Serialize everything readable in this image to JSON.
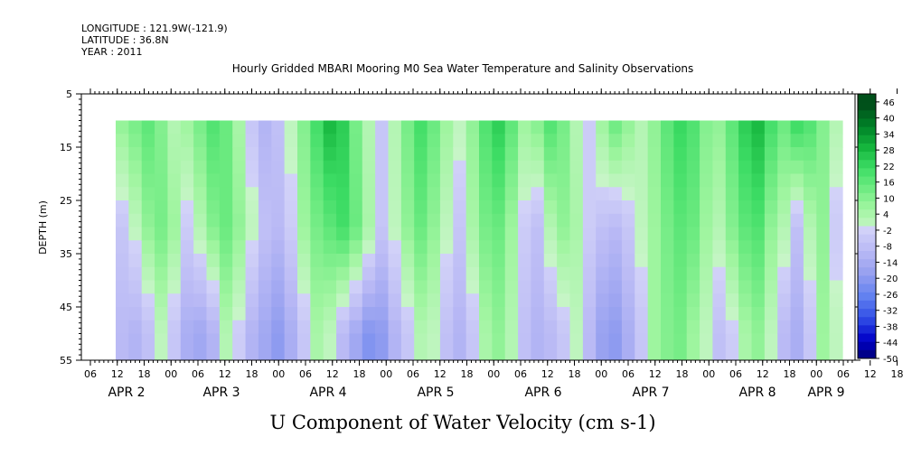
{
  "header": {
    "longitude": "LONGITUDE : 121.9W(-121.9)",
    "latitude": "LATITUDE : 36.8N",
    "year": "YEAR : 2011"
  },
  "chart_data": {
    "type": "heatmap",
    "title": "Hourly Gridded MBARI Mooring M0 Sea Water Temperature and Salinity Observations",
    "xlabel": "U Component of Water Velocity (cm s-1)",
    "ylabel": "DEPTH (m)",
    "ylim": [
      55,
      5
    ],
    "y_ticks": [
      5,
      15,
      25,
      35,
      45,
      55
    ],
    "x_hour_ticks": [
      "06",
      "12",
      "18",
      "00",
      "06",
      "12",
      "18",
      "00",
      "06",
      "12",
      "18",
      "00",
      "06",
      "12",
      "18",
      "00",
      "06",
      "12",
      "18",
      "00",
      "06",
      "12",
      "18",
      "00",
      "06",
      "12",
      "18",
      "00",
      "06",
      "12",
      "18",
      "00"
    ],
    "x_day_labels": [
      "APR  2",
      "APR  3",
      "APR  4",
      "APR  5",
      "APR  6",
      "APR  7",
      "APR  8",
      "APR 9"
    ],
    "data_depth_range_m": [
      10,
      55
    ],
    "colorbar": {
      "ticks": [
        46,
        40,
        34,
        28,
        22,
        16,
        10,
        4,
        -2,
        -8,
        -14,
        -20,
        -26,
        -32,
        -38,
        -44,
        -50
      ],
      "low_color": "#000066",
      "mid_color": "#ffffff",
      "high_color": "#004d1a"
    },
    "columns_hourly_approx": {
      "note_units": "cm s-1",
      "surface_10m": [
        10,
        14,
        18,
        12,
        4,
        8,
        14,
        20,
        16,
        6,
        -4,
        -10,
        -6,
        2,
        12,
        22,
        30,
        26,
        14,
        4,
        -4,
        4,
        14,
        22,
        16,
        8,
        2,
        10,
        20,
        26,
        18,
        8,
        12,
        20,
        14,
        4,
        -2,
        8,
        16,
        10,
        4,
        10,
        18,
        24,
        20,
        12,
        10,
        18,
        26,
        30,
        22,
        16,
        24,
        20,
        12,
        4
      ],
      "mid_30m": [
        -4,
        2,
        10,
        14,
        8,
        -2,
        4,
        12,
        16,
        10,
        2,
        -6,
        -8,
        -2,
        8,
        14,
        18,
        22,
        16,
        6,
        -4,
        2,
        10,
        16,
        10,
        2,
        -4,
        6,
        14,
        16,
        8,
        -2,
        -6,
        4,
        10,
        6,
        -2,
        -6,
        -8,
        -4,
        2,
        8,
        14,
        18,
        16,
        8,
        4,
        12,
        18,
        20,
        10,
        4,
        -6,
        4,
        10,
        -2
      ],
      "bottom_50m": [
        -8,
        -10,
        -6,
        2,
        -4,
        -12,
        -14,
        -10,
        4,
        -2,
        -10,
        -14,
        -18,
        -12,
        -4,
        6,
        2,
        -8,
        -14,
        -20,
        -18,
        -10,
        -4,
        4,
        2,
        -6,
        -10,
        -4,
        6,
        10,
        4,
        -6,
        -10,
        -8,
        -4,
        2,
        -8,
        -16,
        -18,
        -12,
        -4,
        8,
        12,
        14,
        8,
        2,
        -6,
        -2,
        6,
        10,
        2,
        -8,
        -12,
        -4,
        8,
        2
      ]
    }
  }
}
